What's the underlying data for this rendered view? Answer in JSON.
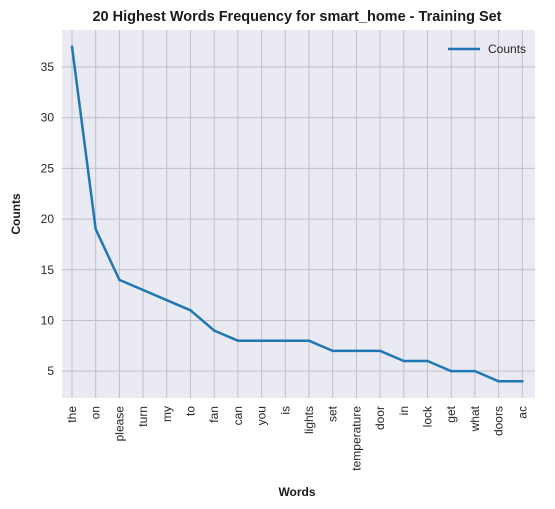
{
  "chart_data": {
    "type": "line",
    "title": "20 Highest Words Frequency for smart_home - Training Set",
    "xlabel": "Words",
    "ylabel": "Counts",
    "categories": [
      "the",
      "on",
      "please",
      "turn",
      "my",
      "to",
      "fan",
      "can",
      "you",
      "is",
      "lights",
      "set",
      "temperature",
      "door",
      "in",
      "lock",
      "get",
      "what",
      "doors",
      "ac"
    ],
    "series": [
      {
        "name": "Counts",
        "values": [
          37,
          19,
          14,
          13,
          12,
          11,
          9,
          8,
          8,
          8,
          8,
          7,
          7,
          7,
          6,
          6,
          5,
          5,
          4,
          4
        ],
        "color": "#1f77b4"
      }
    ],
    "yticks": [
      5,
      10,
      15,
      20,
      25,
      30,
      35
    ],
    "ylim": [
      2.35,
      38.65
    ],
    "grid": true,
    "legend_position": "top-right",
    "background_color": "#eaeaf2",
    "grid_color": "#c0c0c8"
  }
}
